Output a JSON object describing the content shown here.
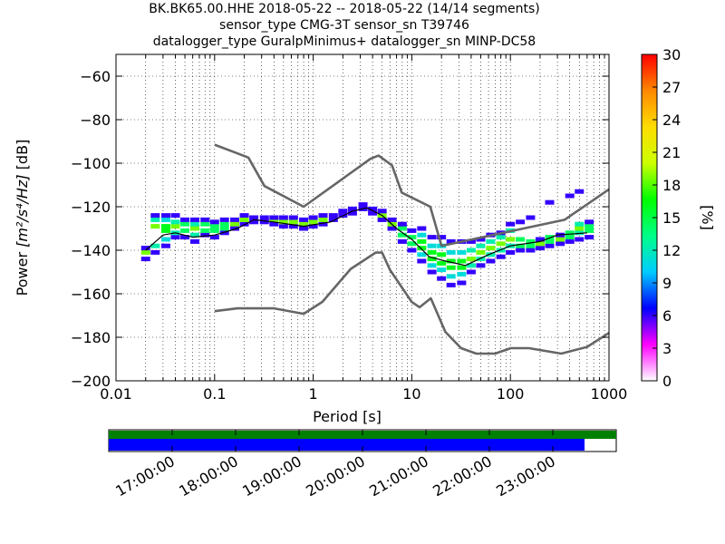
{
  "chart_data": {
    "type": "heatmap",
    "title_lines": [
      "BK.BK65.00.HHE   2018-05-22 -- 2018-05-22  (14/14 segments)",
      "sensor_type CMG-3T sensor_sn T39746",
      "datalogger_type GuralpMinimus+ datalogger_sn MINP-DC58"
    ],
    "xlabel": "Period [s]",
    "ylabel_prefix": "Power ",
    "ylabel_units": "[m²/s⁴/Hz]",
    "ylabel_suffix": " [dB]",
    "x_scale": "log",
    "xlim": [
      0.01,
      1000
    ],
    "ylim": [
      -200,
      -50
    ],
    "x_ticks": [
      0.01,
      0.1,
      1,
      10,
      100,
      1000
    ],
    "x_tick_labels": [
      "0.01",
      "0.1",
      "1",
      "10",
      "100",
      "1000"
    ],
    "y_ticks": [
      -200,
      -180,
      -160,
      -140,
      -120,
      -100,
      -80,
      -60
    ],
    "y_tick_labels": [
      "−200",
      "−180",
      "−160",
      "−140",
      "−120",
      "−100",
      "−80",
      "−60"
    ],
    "grid": true,
    "colorbar": {
      "label": "[%]",
      "range": [
        0,
        30
      ],
      "ticks": [
        0,
        3,
        6,
        9,
        12,
        15,
        18,
        21,
        24,
        27,
        30
      ],
      "tick_labels": [
        "0",
        "3",
        "6",
        "9",
        "12",
        "15",
        "18",
        "21",
        "24",
        "27",
        "30"
      ],
      "colors": [
        "#ffffff",
        "#ff00ff",
        "#0000ff",
        "#00ccff",
        "#00ff88",
        "#00ff00",
        "#ccff00",
        "#ffdd00",
        "#ff8800",
        "#ff0000"
      ]
    },
    "noise_models": {
      "nhnm": {
        "name": "NHNM",
        "color": "#666666",
        "points": [
          [
            0.1,
            -91.5
          ],
          [
            0.22,
            -97.4
          ],
          [
            0.32,
            -110.5
          ],
          [
            0.8,
            -120
          ],
          [
            3.8,
            -98
          ],
          [
            4.6,
            -96.5
          ],
          [
            6.3,
            -101
          ],
          [
            7.9,
            -113.5
          ],
          [
            15.4,
            -120
          ],
          [
            20,
            -138
          ],
          [
            354.8,
            -126
          ],
          [
            1000,
            -112
          ]
        ]
      },
      "nlnm": {
        "name": "NLNM",
        "color": "#666666",
        "points": [
          [
            0.1,
            -168
          ],
          [
            0.17,
            -166.7
          ],
          [
            0.4,
            -166.7
          ],
          [
            0.8,
            -169.2
          ],
          [
            1.24,
            -163.7
          ],
          [
            2.4,
            -148.6
          ],
          [
            4.3,
            -141.1
          ],
          [
            5,
            -141.1
          ],
          [
            6,
            -149
          ],
          [
            10,
            -163.8
          ],
          [
            12,
            -166.2
          ],
          [
            15.6,
            -162.1
          ],
          [
            21.9,
            -177.5
          ],
          [
            31.6,
            -185
          ],
          [
            45,
            -187.5
          ],
          [
            70,
            -187.5
          ],
          [
            101,
            -185
          ],
          [
            154,
            -185
          ],
          [
            328,
            -187.5
          ],
          [
            600,
            -184.4
          ],
          [
            1000,
            -178
          ]
        ]
      }
    },
    "mean_curve": {
      "color": "#000000",
      "points": [
        [
          0.02,
          -140
        ],
        [
          0.03,
          -133
        ],
        [
          0.04,
          -132
        ],
        [
          0.06,
          -134
        ],
        [
          0.1,
          -133
        ],
        [
          0.17,
          -130
        ],
        [
          0.25,
          -126
        ],
        [
          0.4,
          -127
        ],
        [
          0.8,
          -129
        ],
        [
          1.5,
          -127
        ],
        [
          2.5,
          -122
        ],
        [
          3.5,
          -120.5
        ],
        [
          5,
          -124
        ],
        [
          7,
          -130
        ],
        [
          10,
          -135
        ],
        [
          15,
          -143
        ],
        [
          22,
          -145
        ],
        [
          35,
          -147
        ],
        [
          60,
          -142
        ],
        [
          100,
          -138
        ],
        [
          200,
          -136
        ],
        [
          300,
          -133
        ],
        [
          600,
          -132
        ]
      ]
    },
    "heat_cells": [
      {
        "p": 0.02,
        "v": [
          -144,
          -141,
          -139
        ]
      },
      {
        "p": 0.025,
        "v": [
          -141,
          -138,
          -129,
          -126,
          -124
        ]
      },
      {
        "p": 0.032,
        "v": [
          -138,
          -135,
          -131,
          -129,
          -126,
          -124
        ]
      },
      {
        "p": 0.04,
        "v": [
          -134,
          -132,
          -129,
          -127,
          -124
        ]
      },
      {
        "p": 0.05,
        "v": [
          -134,
          -131,
          -128,
          -126
        ]
      },
      {
        "p": 0.063,
        "v": [
          -136,
          -133,
          -130,
          -128,
          -126
        ]
      },
      {
        "p": 0.08,
        "v": [
          -133,
          -131,
          -128,
          -126
        ]
      },
      {
        "p": 0.1,
        "v": [
          -134,
          -131,
          -129,
          -127
        ]
      },
      {
        "p": 0.126,
        "v": [
          -132,
          -130,
          -128,
          -126
        ]
      },
      {
        "p": 0.16,
        "v": [
          -130,
          -128,
          -126
        ]
      },
      {
        "p": 0.2,
        "v": [
          -128,
          -126,
          -124
        ]
      },
      {
        "p": 0.25,
        "v": [
          -127,
          -125
        ]
      },
      {
        "p": 0.32,
        "v": [
          -127,
          -125
        ]
      },
      {
        "p": 0.4,
        "v": [
          -128,
          -126,
          -125
        ]
      },
      {
        "p": 0.5,
        "v": [
          -129,
          -127,
          -125
        ]
      },
      {
        "p": 0.63,
        "v": [
          -129,
          -127,
          -125
        ]
      },
      {
        "p": 0.8,
        "v": [
          -130,
          -128,
          -126
        ]
      },
      {
        "p": 1.0,
        "v": [
          -129,
          -127,
          -125
        ]
      },
      {
        "p": 1.26,
        "v": [
          -128,
          -126,
          -124
        ]
      },
      {
        "p": 1.6,
        "v": [
          -126,
          -124
        ]
      },
      {
        "p": 2.0,
        "v": [
          -124,
          -122
        ]
      },
      {
        "p": 2.5,
        "v": [
          -123,
          -121
        ]
      },
      {
        "p": 3.2,
        "v": [
          -121,
          -119
        ]
      },
      {
        "p": 4.0,
        "v": [
          -123,
          -121
        ]
      },
      {
        "p": 5.0,
        "v": [
          -126,
          -124,
          -122
        ]
      },
      {
        "p": 6.3,
        "v": [
          -130,
          -128,
          -126
        ]
      },
      {
        "p": 8.0,
        "v": [
          -136,
          -133,
          -130,
          -128
        ]
      },
      {
        "p": 10,
        "v": [
          -140,
          -137,
          -134,
          -131
        ]
      },
      {
        "p": 12.6,
        "v": [
          -145,
          -142,
          -139,
          -136,
          -133,
          -130
        ]
      },
      {
        "p": 16,
        "v": [
          -150,
          -147,
          -144,
          -141,
          -138,
          -134
        ]
      },
      {
        "p": 20,
        "v": [
          -153,
          -149,
          -146,
          -142,
          -138,
          -134
        ]
      },
      {
        "p": 25,
        "v": [
          -156,
          -152,
          -148,
          -145,
          -141,
          -136
        ]
      },
      {
        "p": 32,
        "v": [
          -155,
          -151,
          -148,
          -145,
          -141,
          -136
        ]
      },
      {
        "p": 40,
        "v": [
          -150,
          -147,
          -144,
          -140,
          -136
        ]
      },
      {
        "p": 50,
        "v": [
          -147,
          -144,
          -141,
          -138,
          -135
        ]
      },
      {
        "p": 63,
        "v": [
          -145,
          -142,
          -139,
          -136,
          -133
        ]
      },
      {
        "p": 80,
        "v": [
          -143,
          -140,
          -137,
          -134,
          -132
        ]
      },
      {
        "p": 100,
        "v": [
          -141,
          -138,
          -135,
          -131,
          -128
        ]
      },
      {
        "p": 126,
        "v": [
          -140,
          -138,
          -135,
          -127
        ]
      },
      {
        "p": 160,
        "v": [
          -140,
          -138,
          -136,
          -125
        ]
      },
      {
        "p": 200,
        "v": [
          -139,
          -137,
          -135
        ]
      },
      {
        "p": 250,
        "v": [
          -138,
          -136,
          -134,
          -118
        ]
      },
      {
        "p": 320,
        "v": [
          -137,
          -135,
          -133
        ]
      },
      {
        "p": 400,
        "v": [
          -136,
          -134,
          -132,
          -115
        ]
      },
      {
        "p": 500,
        "v": [
          -135,
          -132,
          -130,
          -128,
          -113
        ]
      },
      {
        "p": 630,
        "v": [
          -134,
          -131,
          -129,
          -127
        ]
      }
    ]
  },
  "timeline": {
    "tick_labels": [
      "17:00:00",
      "18:00:00",
      "19:00:00",
      "20:00:00",
      "21:00:00",
      "22:00:00",
      "23:00:00"
    ],
    "available_color": "#008000",
    "used_color": "#0000ff",
    "start_hour": 16.0,
    "end_hour": 24.0,
    "available_end_hour": 24.0,
    "used_end_hour": 23.5
  }
}
